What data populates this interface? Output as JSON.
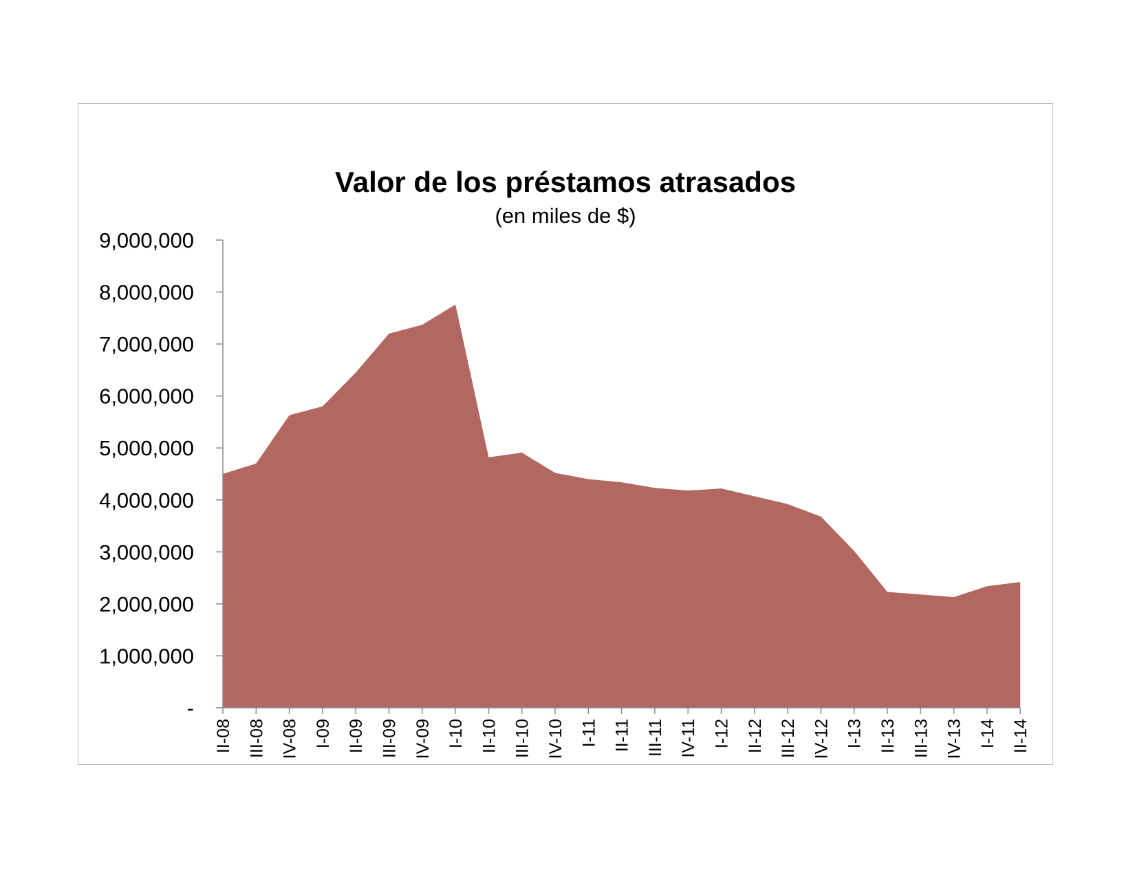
{
  "chart_data": {
    "type": "area",
    "title": "Valor de los préstamos atrasados",
    "subtitle": "(en miles de $)",
    "xlabel": "",
    "ylabel": "",
    "ylim": [
      0,
      9000000
    ],
    "ytick_values": [
      0,
      1000000,
      2000000,
      3000000,
      4000000,
      5000000,
      6000000,
      7000000,
      8000000,
      9000000
    ],
    "ytick_labels": [
      "-",
      "1,000,000",
      "2,000,000",
      "3,000,000",
      "4,000,000",
      "5,000,000",
      "6,000,000",
      "7,000,000",
      "8,000,000",
      "9,000,000"
    ],
    "categories": [
      "II-08",
      "III-08",
      "IV-08",
      "I-09",
      "II-09",
      "III-09",
      "IV-09",
      "I-10",
      "II-10",
      "III-10",
      "IV-10",
      "I-11",
      "II-11",
      "III-11",
      "IV-11",
      "I-12",
      "II-12",
      "III-12",
      "IV-12",
      "I-13",
      "II-13",
      "III-13",
      "IV-13",
      "I-14",
      "II-14"
    ],
    "series": [
      {
        "values": [
          4500000,
          4700000,
          5630000,
          5800000,
          6450000,
          7200000,
          7370000,
          7760000,
          4820000,
          4910000,
          4520000,
          4400000,
          4340000,
          4230000,
          4180000,
          4220000,
          4070000,
          3920000,
          3680000,
          3020000,
          2230000,
          2180000,
          2130000,
          2340000,
          2420000
        ],
        "color": "#b36761"
      }
    ],
    "grid": false,
    "legend": "none"
  }
}
